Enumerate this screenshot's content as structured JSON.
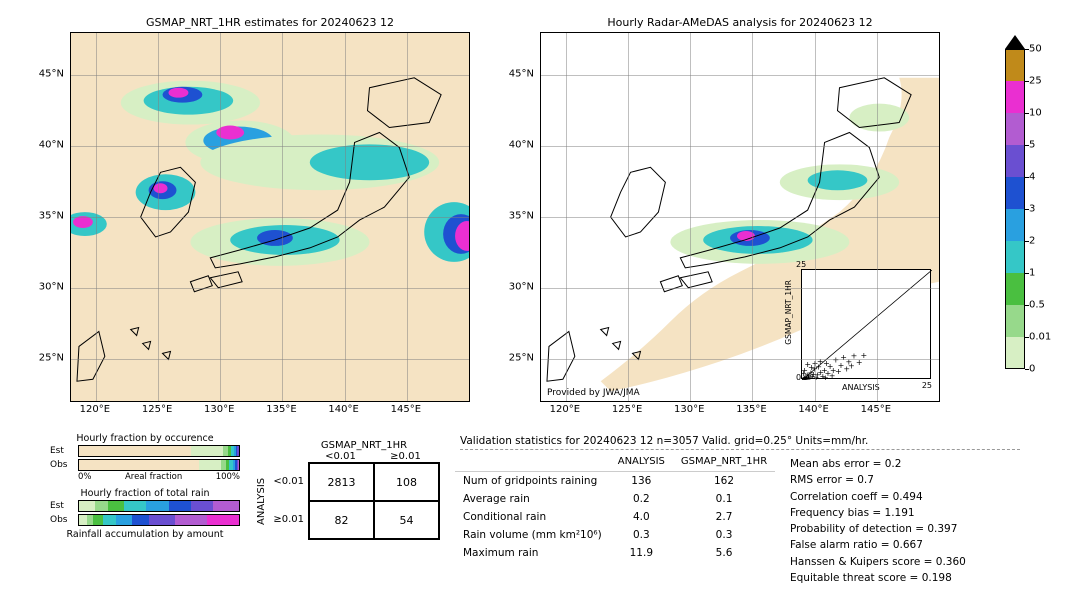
{
  "colors": {
    "scale": [
      {
        "v": 0,
        "hex": "#f5e3c3"
      },
      {
        "v": 0.01,
        "hex": "#d7efc4"
      },
      {
        "v": 0.5,
        "hex": "#97d98b"
      },
      {
        "v": 1,
        "hex": "#4abf40"
      },
      {
        "v": 2,
        "hex": "#35c7c7"
      },
      {
        "v": 3,
        "hex": "#29a0e0"
      },
      {
        "v": 4,
        "hex": "#1e51d1"
      },
      {
        "v": 5,
        "hex": "#6a4fd1"
      },
      {
        "v": 10,
        "hex": "#b25cd1"
      },
      {
        "v": 25,
        "hex": "#ea2fd1"
      },
      {
        "v": 50,
        "hex": "#c08a1a"
      }
    ],
    "arrow_top": "#000000",
    "grid": "#808080",
    "frame": "#000000",
    "bg": "#ffffff"
  },
  "left_map": {
    "title": "GSMAP_NRT_1HR estimates for 20240623 12",
    "xlim": [
      118,
      150
    ],
    "ylim": [
      22,
      48
    ],
    "xticks": [
      120,
      125,
      130,
      135,
      140,
      145
    ],
    "yticks": [
      25,
      30,
      35,
      40,
      45
    ],
    "xtick_labels": [
      "120°E",
      "125°E",
      "130°E",
      "135°E",
      "140°E",
      "145°E"
    ],
    "ytick_labels": [
      "25°N",
      "30°N",
      "35°N",
      "40°N",
      "45°N"
    ]
  },
  "right_map": {
    "title": "Hourly Radar-AMeDAS analysis for 20240623 12",
    "provided_by": "Provided by JWA/JMA",
    "xlim": [
      118,
      150
    ],
    "ylim": [
      22,
      48
    ],
    "xticks": [
      120,
      125,
      130,
      135,
      140,
      145
    ],
    "yticks": [
      25,
      30,
      35,
      40,
      45
    ],
    "xtick_labels": [
      "120°E",
      "125°E",
      "130°E",
      "135°E",
      "140°E",
      "145°E"
    ],
    "ytick_labels": [
      "25°N",
      "30°N",
      "35°N",
      "40°N",
      "45°N"
    ]
  },
  "scatter_inset": {
    "xlim": [
      0,
      25
    ],
    "ylim": [
      0,
      25
    ],
    "xticks": [
      0,
      25
    ],
    "yticks": [
      0,
      25
    ],
    "xlabel": "ANALYSIS",
    "ylabel": "GSMAP_NRT_1HR",
    "points": [
      [
        0.2,
        0.1
      ],
      [
        0.4,
        0.3
      ],
      [
        0.5,
        0.2
      ],
      [
        0.6,
        0.6
      ],
      [
        0.7,
        0.1
      ],
      [
        0.9,
        0.5
      ],
      [
        1,
        1.1
      ],
      [
        1.2,
        0.3
      ],
      [
        1.3,
        0.9
      ],
      [
        1.5,
        0.4
      ],
      [
        1.7,
        1.6
      ],
      [
        2,
        0.8
      ],
      [
        2.2,
        1.3
      ],
      [
        2.4,
        2.5
      ],
      [
        2.7,
        0.5
      ],
      [
        3,
        1.1
      ],
      [
        3.2,
        2.9
      ],
      [
        3.6,
        1.7
      ],
      [
        4,
        0.8
      ],
      [
        4.3,
        2.2
      ],
      [
        4.7,
        3.8
      ],
      [
        5,
        1.5
      ],
      [
        5.4,
        3.1
      ],
      [
        6,
        2.2
      ],
      [
        6.5,
        4.6
      ],
      [
        7,
        1.9
      ],
      [
        7.5,
        3.3
      ],
      [
        8,
        5.1
      ],
      [
        8.6,
        2.5
      ],
      [
        9,
        4.1
      ],
      [
        9.5,
        3.2
      ],
      [
        10,
        5.5
      ],
      [
        11,
        4
      ],
      [
        11.9,
        5.6
      ],
      [
        3.5,
        4.2
      ],
      [
        1.8,
        2.8
      ],
      [
        0.3,
        1.5
      ],
      [
        2.5,
        3.7
      ],
      [
        4.5,
        0.5
      ],
      [
        5.8,
        0.9
      ],
      [
        0.5,
        2.2
      ],
      [
        1.1,
        3.5
      ]
    ]
  },
  "colorbar": {
    "tick_labels": [
      "50",
      "25",
      "10",
      "5",
      "4",
      "3",
      "2",
      "1",
      "0.5",
      "0.01",
      "0"
    ]
  },
  "occ_bars": {
    "title": "Hourly fraction by occurence",
    "xaxis_label": "Areal fraction",
    "xaxis_min": "0%",
    "xaxis_max": "100%",
    "rows": [
      {
        "label": "Est",
        "segs": [
          {
            "c": "#f5e3c3",
            "w": 70
          },
          {
            "c": "#d7efc4",
            "w": 20
          },
          {
            "c": "#97d98b",
            "w": 3
          },
          {
            "c": "#4abf40",
            "w": 2
          },
          {
            "c": "#35c7c7",
            "w": 2
          },
          {
            "c": "#29a0e0",
            "w": 1
          },
          {
            "c": "#1e51d1",
            "w": 1
          },
          {
            "c": "#6a4fd1",
            "w": 1
          }
        ]
      },
      {
        "label": "Obs",
        "segs": [
          {
            "c": "#f5e3c3",
            "w": 75
          },
          {
            "c": "#d7efc4",
            "w": 14
          },
          {
            "c": "#97d98b",
            "w": 3
          },
          {
            "c": "#4abf40",
            "w": 2
          },
          {
            "c": "#35c7c7",
            "w": 2
          },
          {
            "c": "#29a0e0",
            "w": 1.5
          },
          {
            "c": "#1e51d1",
            "w": 1
          },
          {
            "c": "#6a4fd1",
            "w": 1
          },
          {
            "c": "#b25cd1",
            "w": 0.5
          }
        ]
      }
    ]
  },
  "rain_bars": {
    "title": "Hourly fraction of total rain",
    "footer": "Rainfall accumulation by amount",
    "rows": [
      {
        "label": "Est",
        "segs": [
          {
            "c": "#d7efc4",
            "w": 10
          },
          {
            "c": "#97d98b",
            "w": 8
          },
          {
            "c": "#4abf40",
            "w": 10
          },
          {
            "c": "#35c7c7",
            "w": 14
          },
          {
            "c": "#29a0e0",
            "w": 14
          },
          {
            "c": "#1e51d1",
            "w": 14
          },
          {
            "c": "#6a4fd1",
            "w": 14
          },
          {
            "c": "#b25cd1",
            "w": 16
          }
        ]
      },
      {
        "label": "Obs",
        "segs": [
          {
            "c": "#d7efc4",
            "w": 5
          },
          {
            "c": "#97d98b",
            "w": 4
          },
          {
            "c": "#4abf40",
            "w": 6
          },
          {
            "c": "#35c7c7",
            "w": 8
          },
          {
            "c": "#29a0e0",
            "w": 10
          },
          {
            "c": "#1e51d1",
            "w": 11
          },
          {
            "c": "#6a4fd1",
            "w": 16
          },
          {
            "c": "#b25cd1",
            "w": 20
          },
          {
            "c": "#ea2fd1",
            "w": 20
          }
        ]
      }
    ]
  },
  "contingency": {
    "col_title": "GSMAP_NRT_1HR",
    "row_title": "ANALYSIS",
    "col_labels": [
      "<0.01",
      "≥0.01"
    ],
    "row_labels": [
      "<0.01",
      "≥0.01"
    ],
    "cells": [
      [
        "2813",
        "108"
      ],
      [
        "82",
        "54"
      ]
    ]
  },
  "validation": {
    "header": "Validation statistics for 20240623 12  n=3057 Valid. grid=0.25°  Units=mm/hr.",
    "cols": [
      "ANALYSIS",
      "GSMAP_NRT_1HR"
    ],
    "rows": [
      {
        "label": "Num of gridpoints raining",
        "a": "136",
        "b": "162"
      },
      {
        "label": "Average rain",
        "a": "0.2",
        "b": "0.1"
      },
      {
        "label": "Conditional rain",
        "a": "4.0",
        "b": "2.7"
      },
      {
        "label": "Rain volume (mm km²10⁶)",
        "a": "0.3",
        "b": "0.3"
      },
      {
        "label": "Maximum rain",
        "a": "11.9",
        "b": "5.6"
      }
    ],
    "stats": [
      {
        "label": "Mean abs error",
        "op": "=",
        "val": "0.2"
      },
      {
        "label": "RMS error",
        "op": "=",
        "val": "0.7"
      },
      {
        "label": "Correlation coeff",
        "op": "=",
        "val": "0.494"
      },
      {
        "label": "Frequency bias",
        "op": "=",
        "val": "1.191"
      },
      {
        "label": "Probability of detection",
        "op": "=",
        "val": "0.397"
      },
      {
        "label": "False alarm ratio",
        "op": "=",
        "val": "0.667"
      },
      {
        "label": "Hanssen & Kuipers score",
        "op": "=",
        "val": "0.360"
      },
      {
        "label": "Equitable threat score",
        "op": "=",
        "val": "0.198"
      }
    ]
  }
}
